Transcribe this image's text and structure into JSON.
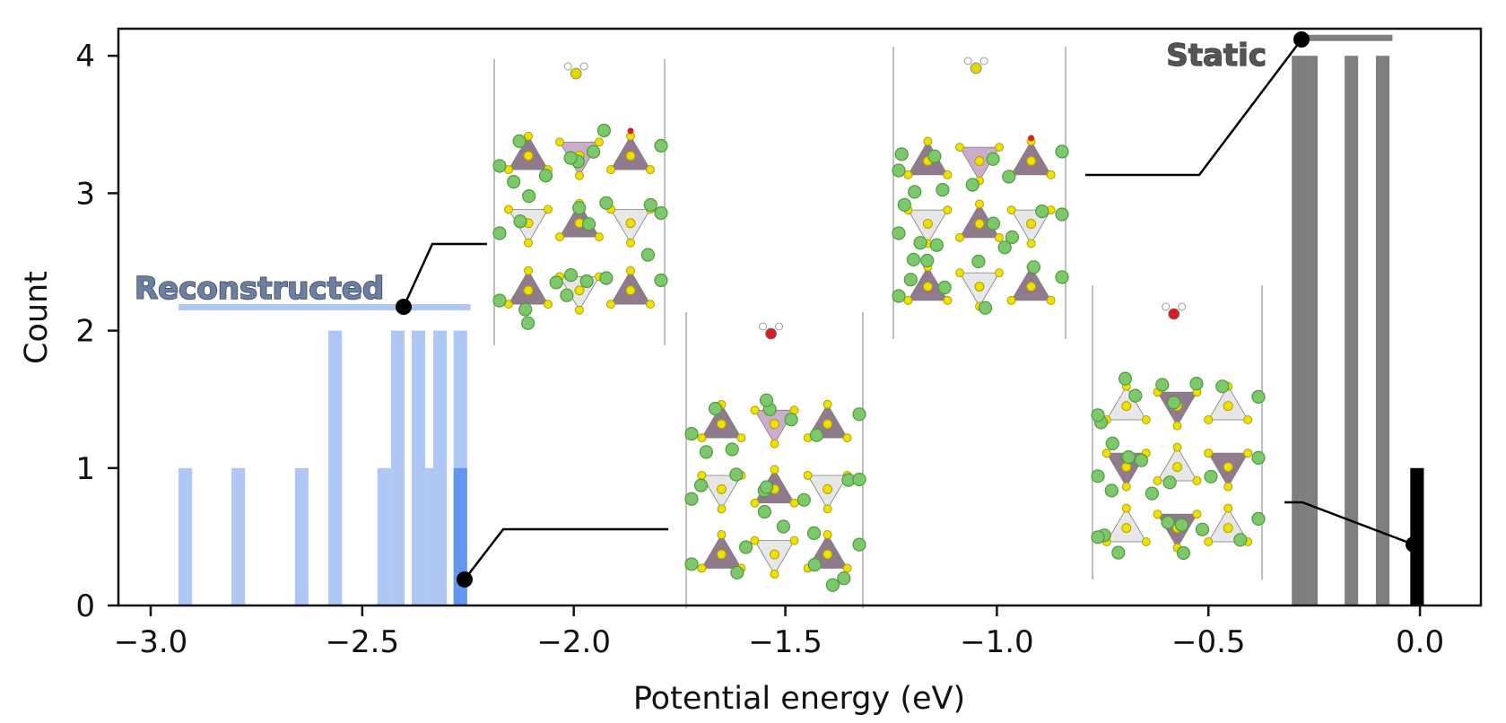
{
  "chart_data": {
    "type": "bar",
    "title": "",
    "xlabel": "Potential energy (eV)",
    "ylabel": "Count",
    "xlim": [
      -3.08,
      0.145
    ],
    "ylim": [
      0,
      4.2
    ],
    "grid": false,
    "x_ticks": [
      -3.0,
      -2.5,
      -2.0,
      -1.5,
      -1.0,
      -0.5,
      0.0
    ],
    "x_tick_labels": [
      "−3.0",
      "−2.5",
      "−2.0",
      "−1.5",
      "−1.0",
      "−0.5",
      "0.0"
    ],
    "y_ticks": [
      0,
      1,
      2,
      3,
      4
    ],
    "y_tick_labels": [
      "0",
      "1",
      "2",
      "3",
      "4"
    ],
    "bin_width": 0.032,
    "series": [
      {
        "name": "Reconstructed",
        "color": "#aec7f4",
        "bins": [
          {
            "x0": -2.934,
            "count": 1
          },
          {
            "x0": -2.809,
            "count": 1
          },
          {
            "x0": -2.659,
            "count": 1
          },
          {
            "x0": -2.58,
            "count": 2
          },
          {
            "x0": -2.464,
            "count": 1
          },
          {
            "x0": -2.432,
            "count": 2
          },
          {
            "x0": -2.383,
            "count": 2
          },
          {
            "x0": -2.351,
            "count": 1
          },
          {
            "x0": -2.332,
            "count": 2
          },
          {
            "x0": -2.284,
            "count": 2
          }
        ],
        "range": {
          "min": -2.934,
          "max": -2.244,
          "level": 2.17
        },
        "label": "Reconstructed",
        "label_color": "#5b6e8c"
      },
      {
        "name": "Reconstructed (highlighted)",
        "color": "#6495ed",
        "bins": [
          {
            "x0": -2.284,
            "count": 1
          }
        ]
      },
      {
        "name": "Static",
        "color": "#7f7f7f",
        "bins": [
          {
            "x0": -0.303,
            "count": 4
          },
          {
            "x0": -0.274,
            "count": 4
          },
          {
            "x0": -0.178,
            "count": 4
          },
          {
            "x0": -0.104,
            "count": 4
          }
        ],
        "range": {
          "min": -0.295,
          "max": -0.065,
          "level": 4.13
        },
        "label": "Static",
        "label_color": "#444444"
      },
      {
        "name": "Static (highlighted)",
        "color": "#000000",
        "bins": [
          {
            "x0": -0.023,
            "count": 1
          }
        ]
      }
    ],
    "annotations": [
      {
        "name": "reconstructed-best",
        "point": [
          -2.26,
          0.2
        ],
        "inset": "inset-b",
        "description": "lowest-energy reconstructed structure"
      },
      {
        "name": "reconstructed-range",
        "point": [
          -2.415,
          2.17
        ],
        "inset": "inset-a",
        "description": "reconstructed range marker"
      },
      {
        "name": "static-range",
        "point": [
          -0.295,
          4.13
        ],
        "inset": "inset-c",
        "description": "static range marker"
      },
      {
        "name": "static-best",
        "point": [
          -0.015,
          0.45
        ],
        "inset": "inset-d",
        "description": "lowest-energy static structure"
      }
    ],
    "insets": [
      {
        "id": "inset-a",
        "molecule_color": "#e6d600",
        "has_red_atom": true,
        "surface": "reconstructed"
      },
      {
        "id": "inset-b",
        "molecule_color": "#d42020",
        "has_red_atom": true,
        "surface": "reconstructed"
      },
      {
        "id": "inset-c",
        "molecule_color": "#e6d600",
        "has_red_atom": true,
        "surface": "reconstructed"
      },
      {
        "id": "inset-d",
        "molecule_color": "#d42020",
        "has_red_atom": false,
        "surface": "static"
      }
    ]
  }
}
